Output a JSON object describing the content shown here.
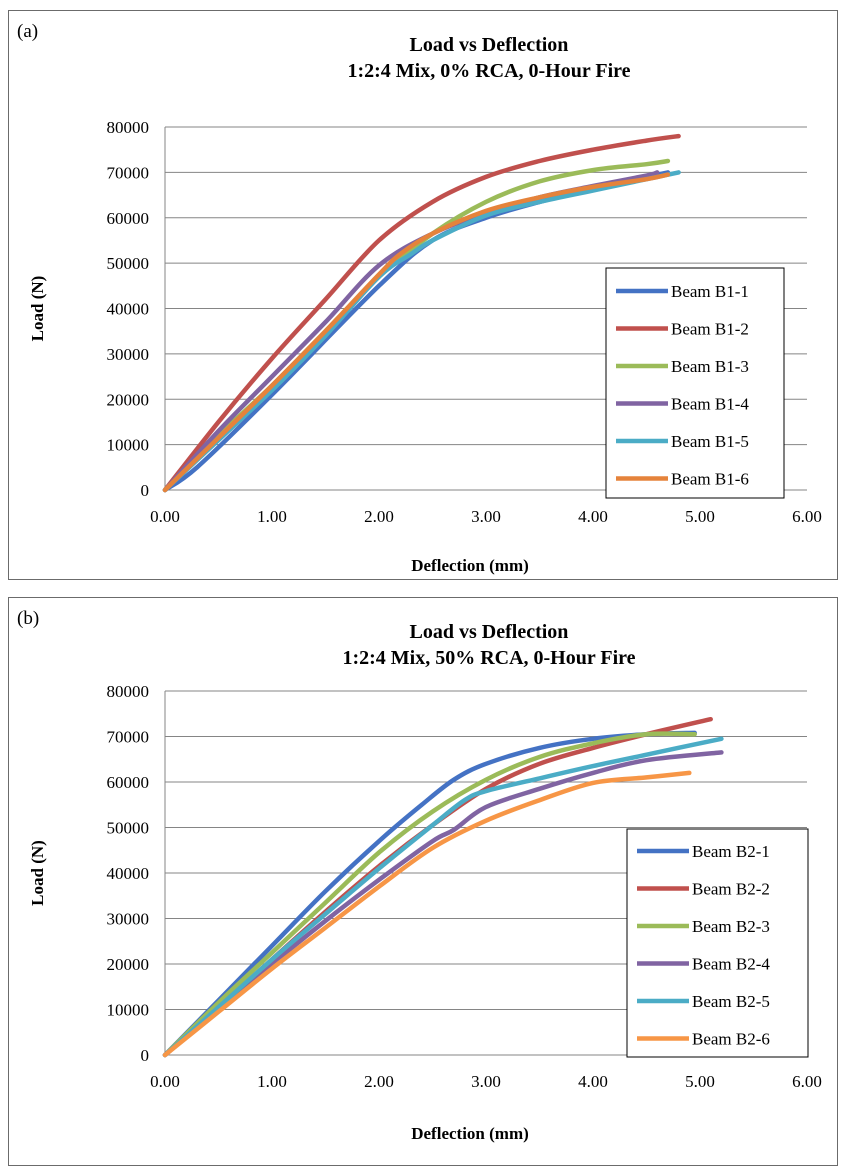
{
  "chart_data": [
    {
      "type": "line",
      "panel_label": "(a)",
      "title": [
        "Load vs Deflection",
        "1:2:4 Mix, 0% RCA, 0-Hour Fire"
      ],
      "xlabel": "Deflection (mm)",
      "ylabel": "Load (N)",
      "xlim": [
        0,
        6
      ],
      "ylim": [
        0,
        80000
      ],
      "xticks": [
        "0.00",
        "1.00",
        "2.00",
        "3.00",
        "4.00",
        "5.00",
        "6.00"
      ],
      "yticks": [
        "0",
        "10000",
        "20000",
        "30000",
        "40000",
        "50000",
        "60000",
        "70000",
        "80000"
      ],
      "grid": "horizontal",
      "legend_position": "right",
      "series": [
        {
          "name": "Beam B1-1",
          "color": "#4472c4",
          "x": [
            0,
            0.3,
            1.0,
            2.0,
            2.5,
            3.0,
            3.5,
            4.0,
            4.5,
            4.7
          ],
          "y": [
            0,
            5000,
            21000,
            45000,
            55000,
            60000,
            63500,
            66500,
            69000,
            70000
          ]
        },
        {
          "name": "Beam B1-2",
          "color": "#c0504d",
          "x": [
            0,
            0.5,
            1.0,
            1.5,
            2.0,
            2.5,
            3.0,
            3.5,
            4.0,
            4.5,
            4.8
          ],
          "y": [
            0,
            15000,
            29000,
            42000,
            55000,
            63500,
            69000,
            72500,
            75000,
            77000,
            78000
          ]
        },
        {
          "name": "Beam B1-3",
          "color": "#9bbb59",
          "x": [
            0,
            0.5,
            1.0,
            1.5,
            2.0,
            2.5,
            3.0,
            3.5,
            4.0,
            4.5,
            4.7
          ],
          "y": [
            0,
            12000,
            23000,
            35000,
            47000,
            56500,
            63500,
            68000,
            70500,
            71800,
            72500
          ]
        },
        {
          "name": "Beam B1-4",
          "color": "#8064a2",
          "x": [
            0,
            0.5,
            1.0,
            1.5,
            2.0,
            2.5,
            3.0,
            3.5,
            4.0,
            4.5,
            4.6
          ],
          "y": [
            0,
            13000,
            25000,
            37000,
            49500,
            56500,
            61000,
            64500,
            67000,
            69300,
            70000
          ]
        },
        {
          "name": "Beam B1-5",
          "color": "#4bacc6",
          "x": [
            0,
            0.5,
            1.0,
            1.5,
            2.0,
            2.3,
            2.5,
            3.0,
            3.5,
            4.0,
            4.5,
            4.8
          ],
          "y": [
            0,
            11000,
            22000,
            34000,
            47000,
            52000,
            55000,
            60500,
            63500,
            66000,
            68500,
            70000
          ]
        },
        {
          "name": "Beam B1-6",
          "color": "#e5833b",
          "x": [
            0,
            0.5,
            1.0,
            1.5,
            2.0,
            2.2,
            2.5,
            3.0,
            3.5,
            4.0,
            4.5,
            4.7
          ],
          "y": [
            0,
            11500,
            23000,
            35000,
            47500,
            52000,
            56500,
            61500,
            64500,
            66800,
            68500,
            69500
          ]
        }
      ]
    },
    {
      "type": "line",
      "panel_label": "(b)",
      "title": [
        "Load vs Deflection",
        "1:2:4 Mix, 50% RCA, 0-Hour Fire"
      ],
      "xlabel": "Deflection (mm)",
      "ylabel": "Load  (N)",
      "xlim": [
        0,
        6
      ],
      "ylim": [
        0,
        80000
      ],
      "xticks": [
        "0.00",
        "1.00",
        "2.00",
        "3.00",
        "4.00",
        "5.00",
        "6.00"
      ],
      "yticks": [
        "0",
        "10000",
        "20000",
        "30000",
        "40000",
        "50000",
        "60000",
        "70000",
        "80000"
      ],
      "grid": "horizontal",
      "legend_position": "right",
      "series": [
        {
          "name": "Beam B2-1",
          "color": "#4472c4",
          "x": [
            0,
            0.5,
            1.0,
            1.5,
            2.0,
            2.4,
            2.7,
            3.0,
            3.5,
            4.0,
            4.5,
            4.95
          ],
          "y": [
            0,
            12000,
            24000,
            36000,
            47000,
            55000,
            60500,
            64000,
            67500,
            69500,
            70500,
            70800
          ]
        },
        {
          "name": "Beam B2-2",
          "color": "#c0504d",
          "x": [
            0,
            0.5,
            1.0,
            1.5,
            2.0,
            2.5,
            3.0,
            3.5,
            4.0,
            4.5,
            5.1
          ],
          "y": [
            0,
            10500,
            21000,
            31500,
            41500,
            50500,
            58500,
            64000,
            67500,
            70500,
            73800
          ]
        },
        {
          "name": "Beam B2-3",
          "color": "#9bbb59",
          "x": [
            0,
            0.5,
            1.0,
            1.5,
            2.0,
            2.5,
            3.0,
            3.5,
            4.0,
            4.5,
            4.95
          ],
          "y": [
            0,
            11500,
            22500,
            33500,
            44500,
            53500,
            60500,
            65500,
            68500,
            70500,
            70500
          ]
        },
        {
          "name": "Beam B2-4",
          "color": "#8064a2",
          "x": [
            0,
            0.5,
            1.0,
            1.5,
            2.0,
            2.5,
            2.7,
            3.0,
            3.5,
            4.0,
            4.5,
            5.2
          ],
          "y": [
            0,
            10000,
            20000,
            29500,
            38500,
            47000,
            49500,
            54500,
            58500,
            62000,
            64800,
            66500
          ]
        },
        {
          "name": "Beam B2-5",
          "color": "#4bacc6",
          "x": [
            0,
            0.5,
            1.0,
            1.5,
            2.0,
            2.5,
            2.8,
            3.0,
            3.5,
            4.0,
            4.5,
            5.2
          ],
          "y": [
            0,
            10500,
            21000,
            31000,
            41000,
            50500,
            56000,
            58000,
            60800,
            63500,
            66000,
            69500
          ]
        },
        {
          "name": "Beam B2-6",
          "color": "#f79646",
          "x": [
            0,
            0.5,
            1.0,
            1.5,
            2.0,
            2.5,
            3.0,
            3.5,
            4.0,
            4.5,
            4.9
          ],
          "y": [
            0,
            9500,
            19000,
            28000,
            37000,
            45500,
            51500,
            56000,
            59800,
            61000,
            62000
          ]
        }
      ]
    }
  ]
}
